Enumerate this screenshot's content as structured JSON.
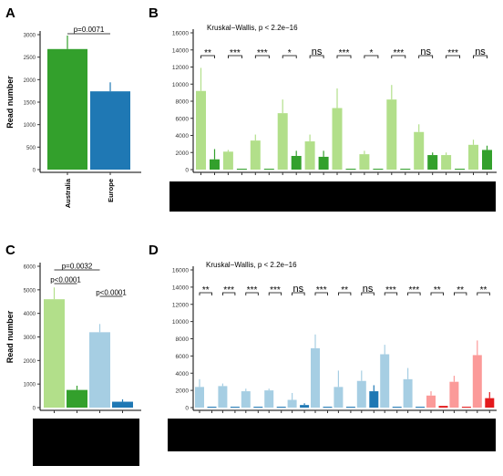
{
  "panels": {
    "A": {
      "letter": "A"
    },
    "B": {
      "letter": "B"
    },
    "C": {
      "letter": "C"
    },
    "D": {
      "letter": "D"
    }
  },
  "colors": {
    "light_green": "#b2df8a",
    "dark_green": "#33a02c",
    "light_blue": "#a6cee3",
    "dark_blue": "#1f78b4",
    "light_red": "#fb9a99",
    "dark_red": "#e31a1c",
    "redaction": "#000000"
  },
  "chart_data": [
    {
      "panel": "A",
      "type": "bar",
      "ylabel": "Read number",
      "ylim": [
        0,
        3000
      ],
      "yticks": [
        0,
        500,
        1000,
        1500,
        2000,
        2500,
        3000
      ],
      "categories": [
        "Australia",
        "Europe"
      ],
      "values": [
        2680,
        1740
      ],
      "errors": [
        300,
        200
      ],
      "colors": [
        "#33a02c",
        "#1f78b4"
      ],
      "annotations": [
        {
          "text": "p=0.0071",
          "from": 0,
          "to": 1
        }
      ]
    },
    {
      "panel": "B",
      "type": "bar",
      "title": "Kruskal−Wallis, p < 2.2e−16",
      "ylim": [
        0,
        16000
      ],
      "yticks": [
        0,
        2000,
        4000,
        6000,
        8000,
        10000,
        12000,
        14000,
        16000
      ],
      "groups": [
        {
          "label": "**",
          "values": [
            9200,
            1200
          ],
          "errors": [
            2700,
            1200
          ],
          "colors": [
            "#b2df8a",
            "#33a02c"
          ]
        },
        {
          "label": "***",
          "values": [
            2100,
            0
          ],
          "errors": [
            200,
            0
          ],
          "colors": [
            "#b2df8a",
            "#33a02c"
          ]
        },
        {
          "label": "***",
          "values": [
            3400,
            0
          ],
          "errors": [
            700,
            0
          ],
          "colors": [
            "#b2df8a",
            "#33a02c"
          ]
        },
        {
          "label": "*",
          "values": [
            6600,
            1600
          ],
          "errors": [
            1600,
            600
          ],
          "colors": [
            "#b2df8a",
            "#33a02c"
          ]
        },
        {
          "label": "ns",
          "values": [
            3300,
            1500
          ],
          "errors": [
            800,
            700
          ],
          "colors": [
            "#b2df8a",
            "#33a02c"
          ]
        },
        {
          "label": "***",
          "values": [
            7200,
            0
          ],
          "errors": [
            2300,
            0
          ],
          "colors": [
            "#b2df8a",
            "#33a02c"
          ]
        },
        {
          "label": "*",
          "values": [
            1800,
            0
          ],
          "errors": [
            400,
            0
          ],
          "colors": [
            "#b2df8a",
            "#33a02c"
          ]
        },
        {
          "label": "***",
          "values": [
            8200,
            0
          ],
          "errors": [
            1700,
            0
          ],
          "colors": [
            "#b2df8a",
            "#33a02c"
          ]
        },
        {
          "label": "ns",
          "values": [
            4400,
            1700
          ],
          "errors": [
            900,
            300
          ],
          "colors": [
            "#b2df8a",
            "#33a02c"
          ]
        },
        {
          "label": "***",
          "values": [
            1700,
            0
          ],
          "errors": [
            300,
            0
          ],
          "colors": [
            "#b2df8a",
            "#33a02c"
          ]
        },
        {
          "label": "ns",
          "values": [
            2900,
            2300
          ],
          "errors": [
            600,
            500
          ],
          "colors": [
            "#b2df8a",
            "#33a02c"
          ]
        }
      ]
    },
    {
      "panel": "C",
      "type": "bar",
      "ylabel": "Read number",
      "ylim": [
        0,
        6000
      ],
      "yticks": [
        0,
        1000,
        2000,
        3000,
        4000,
        5000,
        6000
      ],
      "values": [
        4600,
        750,
        3200,
        250
      ],
      "errors": [
        500,
        180,
        350,
        100
      ],
      "colors": [
        "#b2df8a",
        "#33a02c",
        "#a6cee3",
        "#1f78b4"
      ],
      "annotations": [
        {
          "text": "p=0.0032",
          "from": 0,
          "to": 2
        },
        {
          "text": "p<0.0001",
          "from": 0,
          "to": 1
        },
        {
          "text": "p<0.0001",
          "from": 2,
          "to": 3
        }
      ]
    },
    {
      "panel": "D",
      "type": "bar",
      "title": "Kruskal−Wallis, p < 2.2e−16",
      "ylim": [
        0,
        16000
      ],
      "yticks": [
        0,
        2000,
        4000,
        6000,
        8000,
        10000,
        12000,
        14000,
        16000
      ],
      "groups": [
        {
          "label": "**",
          "values": [
            2400,
            0
          ],
          "errors": [
            900,
            0
          ],
          "colors": [
            "#a6cee3",
            "#1f78b4"
          ]
        },
        {
          "label": "***",
          "values": [
            2500,
            0
          ],
          "errors": [
            300,
            0
          ],
          "colors": [
            "#a6cee3",
            "#1f78b4"
          ]
        },
        {
          "label": "***",
          "values": [
            1900,
            0
          ],
          "errors": [
            300,
            0
          ],
          "colors": [
            "#a6cee3",
            "#1f78b4"
          ]
        },
        {
          "label": "***",
          "values": [
            2000,
            0
          ],
          "errors": [
            200,
            0
          ],
          "colors": [
            "#a6cee3",
            "#1f78b4"
          ]
        },
        {
          "label": "ns",
          "values": [
            900,
            300
          ],
          "errors": [
            800,
            200
          ],
          "colors": [
            "#a6cee3",
            "#1f78b4"
          ]
        },
        {
          "label": "***",
          "values": [
            6900,
            0
          ],
          "errors": [
            1600,
            0
          ],
          "colors": [
            "#a6cee3",
            "#1f78b4"
          ]
        },
        {
          "label": "**",
          "values": [
            2400,
            0
          ],
          "errors": [
            1900,
            0
          ],
          "colors": [
            "#a6cee3",
            "#1f78b4"
          ]
        },
        {
          "label": "ns",
          "values": [
            3100,
            1900
          ],
          "errors": [
            1200,
            700
          ],
          "colors": [
            "#a6cee3",
            "#1f78b4"
          ]
        },
        {
          "label": "***",
          "values": [
            6200,
            0
          ],
          "errors": [
            1100,
            0
          ],
          "colors": [
            "#a6cee3",
            "#1f78b4"
          ]
        },
        {
          "label": "***",
          "values": [
            3300,
            0
          ],
          "errors": [
            1300,
            0
          ],
          "colors": [
            "#a6cee3",
            "#1f78b4"
          ]
        },
        {
          "label": "**",
          "values": [
            1400,
            200
          ],
          "errors": [
            500,
            0
          ],
          "colors": [
            "#fb9a99",
            "#e31a1c"
          ]
        },
        {
          "label": "**",
          "values": [
            3000,
            0
          ],
          "errors": [
            700,
            0
          ],
          "colors": [
            "#fb9a99",
            "#e31a1c"
          ]
        },
        {
          "label": "**",
          "values": [
            6100,
            1100
          ],
          "errors": [
            1700,
            700
          ],
          "colors": [
            "#fb9a99",
            "#e31a1c"
          ]
        }
      ]
    }
  ]
}
